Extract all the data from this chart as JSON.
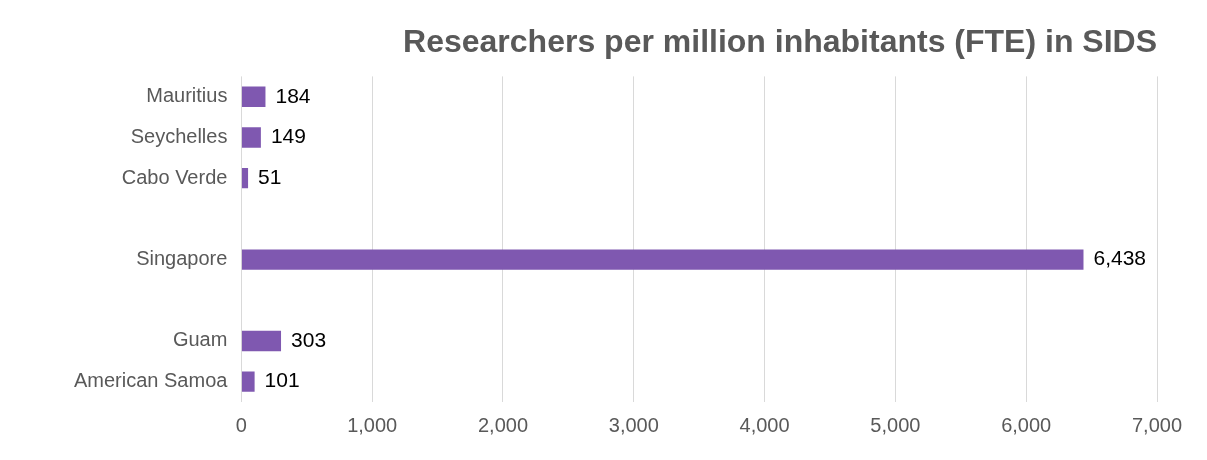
{
  "chart_data": {
    "type": "bar",
    "orientation": "horizontal",
    "title": "Researchers per million inhabitants (FTE) in SIDS",
    "categories": [
      "Mauritius",
      "Seychelles",
      "Cabo Verde",
      null,
      "Singapore",
      null,
      "Guam",
      "American Samoa"
    ],
    "values": [
      184,
      149,
      51,
      null,
      6438,
      null,
      303,
      101
    ],
    "value_labels": [
      "184",
      "149",
      "51",
      null,
      "6,438",
      null,
      "303",
      "101"
    ],
    "color": "#7f58b0",
    "xlim": [
      0,
      7000
    ],
    "xticks": [
      {
        "value": 0,
        "label": "0"
      },
      {
        "value": 1000,
        "label": "1,000"
      },
      {
        "value": 2000,
        "label": "2,000"
      },
      {
        "value": 3000,
        "label": "3,000"
      },
      {
        "value": 4000,
        "label": "4,000"
      },
      {
        "value": 5000,
        "label": "5,000"
      },
      {
        "value": 6000,
        "label": "6,000"
      },
      {
        "value": 7000,
        "label": "7,000"
      }
    ],
    "grid": "x",
    "legend": false
  }
}
